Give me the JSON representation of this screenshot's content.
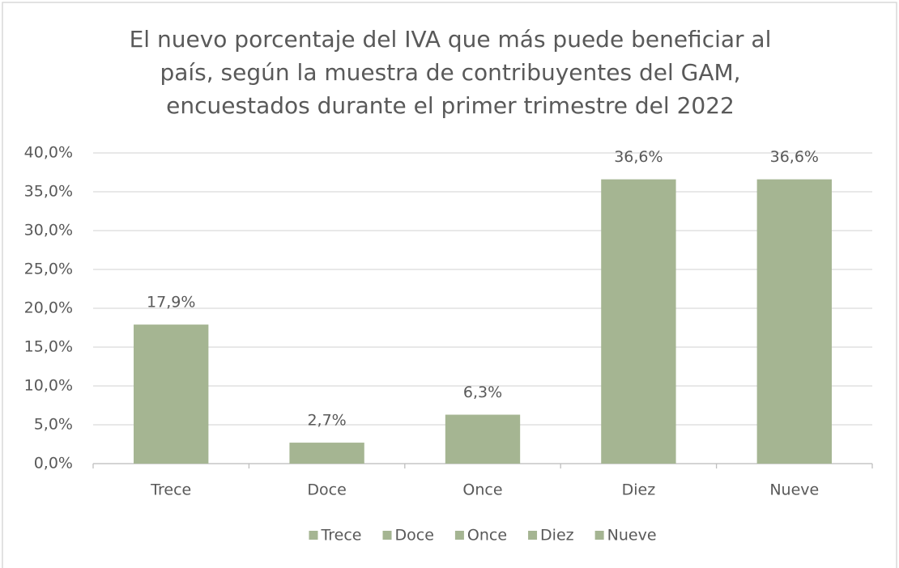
{
  "chart_data": {
    "type": "bar",
    "title": [
      "El nuevo porcentaje del IVA que más puede beneficiar al",
      "país, según la muestra de contribuyentes del GAM,",
      "encuestados durante el primer trimestre del 2022"
    ],
    "categories": [
      "Trece",
      "Doce",
      "Once",
      "Diez",
      "Nueve"
    ],
    "values": [
      17.9,
      2.7,
      6.3,
      36.6,
      36.6
    ],
    "value_labels": [
      "17,9%",
      "2,7%",
      "6,3%",
      "36,6%",
      "36,6%"
    ],
    "color": "#a5b592",
    "ylim": [
      0,
      40
    ],
    "yticks": [
      {
        "value": 0,
        "label": "0,0%"
      },
      {
        "value": 5,
        "label": "5,0%"
      },
      {
        "value": 10,
        "label": "10,0%"
      },
      {
        "value": 15,
        "label": "15,0%"
      },
      {
        "value": 20,
        "label": "20,0%"
      },
      {
        "value": 25,
        "label": "25,0%"
      },
      {
        "value": 30,
        "label": "30,0%"
      },
      {
        "value": 35,
        "label": "35,0%"
      },
      {
        "value": 40,
        "label": "40,0%"
      }
    ],
    "grid": true,
    "legend": "bottom"
  }
}
